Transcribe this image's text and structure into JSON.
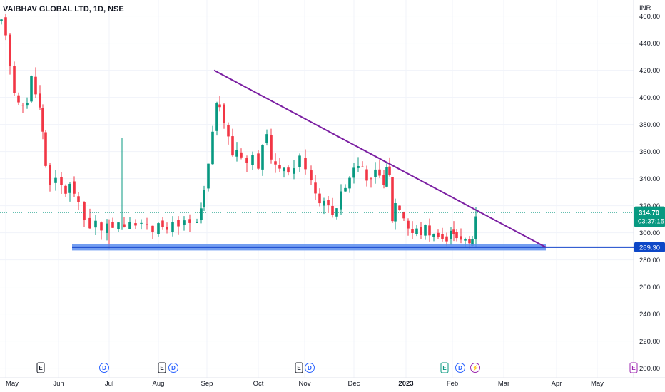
{
  "symbol_title": "VAIBHAV GLOBAL LTD, 1D, NSE",
  "currency": "INR",
  "colors": {
    "up": "#089981",
    "down": "#f23645",
    "trendline": "#7b1fa2",
    "support_zone": "#5b8def",
    "support_line": "#1848cc",
    "last_price_tag": "#089981",
    "support_tag": "#0d47c7",
    "grid": "#f0f3fa",
    "axis_text": "#131722"
  },
  "chart_data": {
    "type": "candlestick",
    "title": "VAIBHAV GLOBAL LTD, 1D, NSE",
    "y_axis_ticks": [
      "200.00",
      "220.00",
      "240.00",
      "260.00",
      "280.00",
      "300.00",
      "320.00",
      "340.00",
      "360.00",
      "380.00",
      "400.00",
      "420.00",
      "440.00",
      "460.00"
    ],
    "x_axis_ticks": [
      "May",
      "Jun",
      "Jul",
      "Aug",
      "Sep",
      "Oct",
      "Nov",
      "Dec",
      "2023",
      "Feb",
      "Mar",
      "Apr",
      "May"
    ],
    "ylim": [
      200,
      465
    ],
    "last_price": "314.70",
    "countdown": "03:37:15",
    "support_level": "289.30",
    "trendline": {
      "start": {
        "x": "Sep",
        "y": 420
      },
      "end": {
        "x": "Mar",
        "y": 289.3
      }
    },
    "support_zone": {
      "low": 288,
      "high": 291
    },
    "candles_approx": [
      {
        "x": "May",
        "high": 465,
        "low": 440
      },
      {
        "x": "May",
        "high": 430,
        "low": 385
      },
      {
        "x": "Jun",
        "high": 378,
        "low": 330
      },
      {
        "x": "Jun",
        "high": 350,
        "low": 300
      },
      {
        "x": "Jul",
        "high": 370,
        "low": 292
      },
      {
        "x": "Aug",
        "high": 340,
        "low": 292
      },
      {
        "x": "Sep",
        "high": 420,
        "low": 300
      },
      {
        "x": "Oct",
        "high": 385,
        "low": 340
      },
      {
        "x": "Nov",
        "high": 370,
        "low": 315
      },
      {
        "x": "Dec",
        "high": 360,
        "low": 305
      },
      {
        "x": "2023",
        "high": 315,
        "low": 292
      },
      {
        "x": "Feb",
        "high": 318,
        "low": 290
      }
    ],
    "events": [
      {
        "x": "May",
        "label": "E"
      },
      {
        "x": "Jul",
        "label": "D"
      },
      {
        "x": "Aug",
        "label": "E"
      },
      {
        "x": "Aug",
        "label": "D"
      },
      {
        "x": "Oct",
        "label": "E"
      },
      {
        "x": "Oct",
        "label": "D"
      },
      {
        "x": "Feb",
        "label": "E"
      },
      {
        "x": "Feb",
        "label": "D"
      },
      {
        "x": "Feb",
        "label": "⚡"
      },
      {
        "x": "May",
        "label": "E"
      }
    ]
  }
}
